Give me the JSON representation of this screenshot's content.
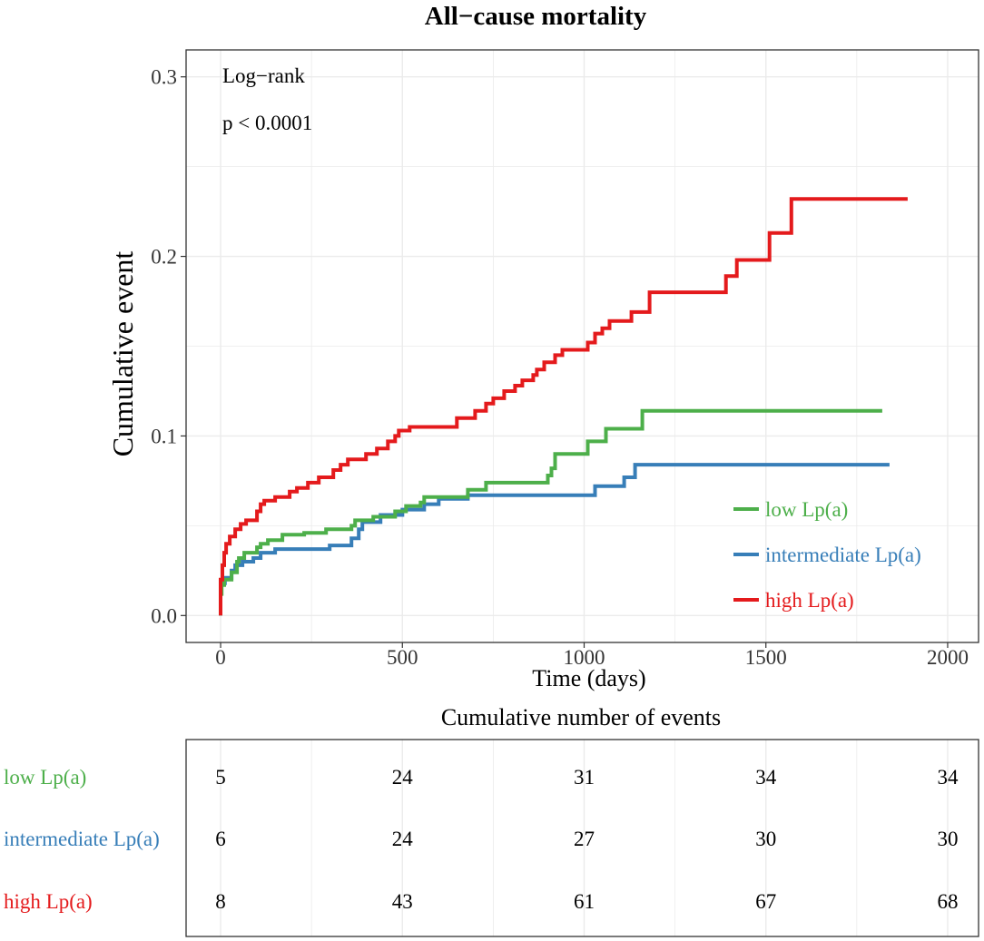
{
  "chart_data": [
    {
      "type": "line",
      "subtype": "step",
      "title": "All−cause mortality",
      "xlabel": "Time (days)",
      "ylabel": "Cumulative event",
      "xlim": [
        -95,
        2085
      ],
      "ylim": [
        -0.015,
        0.315
      ],
      "xticks": [
        0,
        500,
        1000,
        1500,
        2000
      ],
      "xtick_labels": [
        "0",
        "500",
        "1000",
        "1500",
        "2000"
      ],
      "yticks": [
        0.0,
        0.1,
        0.2,
        0.3
      ],
      "ytick_labels": [
        "0.0",
        "0.1",
        "0.2",
        "0.3"
      ],
      "grid": true,
      "legend_position": "bottom-right",
      "annotations": [
        "Log−rank",
        "p < 0.0001"
      ],
      "series": [
        {
          "name": "low Lp(a)",
          "color": "#4DAF4A",
          "points": [
            [
              0,
              0
            ],
            [
              0,
              0.012
            ],
            [
              3,
              0.012
            ],
            [
              3,
              0.017
            ],
            [
              10,
              0.017
            ],
            [
              10,
              0.02
            ],
            [
              30,
              0.02
            ],
            [
              30,
              0.024
            ],
            [
              45,
              0.024
            ],
            [
              45,
              0.03
            ],
            [
              50,
              0.03
            ],
            [
              50,
              0.032
            ],
            [
              65,
              0.032
            ],
            [
              65,
              0.035
            ],
            [
              100,
              0.035
            ],
            [
              100,
              0.038
            ],
            [
              110,
              0.038
            ],
            [
              110,
              0.04
            ],
            [
              130,
              0.04
            ],
            [
              130,
              0.042
            ],
            [
              170,
              0.042
            ],
            [
              170,
              0.045
            ],
            [
              230,
              0.045
            ],
            [
              230,
              0.046
            ],
            [
              290,
              0.046
            ],
            [
              290,
              0.048
            ],
            [
              360,
              0.048
            ],
            [
              360,
              0.05
            ],
            [
              370,
              0.05
            ],
            [
              370,
              0.053
            ],
            [
              420,
              0.053
            ],
            [
              420,
              0.055
            ],
            [
              480,
              0.055
            ],
            [
              480,
              0.058
            ],
            [
              510,
              0.058
            ],
            [
              510,
              0.061
            ],
            [
              550,
              0.061
            ],
            [
              550,
              0.063
            ],
            [
              560,
              0.063
            ],
            [
              560,
              0.066
            ],
            [
              680,
              0.066
            ],
            [
              680,
              0.07
            ],
            [
              730,
              0.07
            ],
            [
              730,
              0.074
            ],
            [
              900,
              0.074
            ],
            [
              900,
              0.078
            ],
            [
              910,
              0.078
            ],
            [
              910,
              0.082
            ],
            [
              920,
              0.082
            ],
            [
              920,
              0.09
            ],
            [
              1010,
              0.09
            ],
            [
              1010,
              0.097
            ],
            [
              1060,
              0.097
            ],
            [
              1060,
              0.104
            ],
            [
              1160,
              0.104
            ],
            [
              1160,
              0.114
            ],
            [
              1820,
              0.114
            ]
          ]
        },
        {
          "name": "intermediate Lp(a)",
          "color": "#377EB8",
          "points": [
            [
              0,
              0
            ],
            [
              0,
              0.018
            ],
            [
              12,
              0.018
            ],
            [
              12,
              0.021
            ],
            [
              30,
              0.021
            ],
            [
              30,
              0.025
            ],
            [
              40,
              0.025
            ],
            [
              40,
              0.028
            ],
            [
              60,
              0.028
            ],
            [
              60,
              0.03
            ],
            [
              90,
              0.03
            ],
            [
              90,
              0.032
            ],
            [
              110,
              0.032
            ],
            [
              110,
              0.035
            ],
            [
              150,
              0.035
            ],
            [
              150,
              0.037
            ],
            [
              300,
              0.037
            ],
            [
              300,
              0.039
            ],
            [
              360,
              0.039
            ],
            [
              360,
              0.043
            ],
            [
              380,
              0.043
            ],
            [
              380,
              0.048
            ],
            [
              390,
              0.048
            ],
            [
              390,
              0.052
            ],
            [
              440,
              0.052
            ],
            [
              440,
              0.056
            ],
            [
              500,
              0.056
            ],
            [
              500,
              0.059
            ],
            [
              560,
              0.059
            ],
            [
              560,
              0.062
            ],
            [
              600,
              0.062
            ],
            [
              600,
              0.065
            ],
            [
              680,
              0.065
            ],
            [
              680,
              0.067
            ],
            [
              1030,
              0.067
            ],
            [
              1030,
              0.072
            ],
            [
              1110,
              0.072
            ],
            [
              1110,
              0.077
            ],
            [
              1140,
              0.077
            ],
            [
              1140,
              0.084
            ],
            [
              1840,
              0.084
            ]
          ]
        },
        {
          "name": "high Lp(a)",
          "color": "#E41A1C",
          "points": [
            [
              0,
              0
            ],
            [
              0,
              0.02
            ],
            [
              5,
              0.02
            ],
            [
              5,
              0.028
            ],
            [
              10,
              0.028
            ],
            [
              10,
              0.035
            ],
            [
              15,
              0.035
            ],
            [
              15,
              0.04
            ],
            [
              25,
              0.04
            ],
            [
              25,
              0.044
            ],
            [
              40,
              0.044
            ],
            [
              40,
              0.048
            ],
            [
              55,
              0.048
            ],
            [
              55,
              0.051
            ],
            [
              70,
              0.051
            ],
            [
              70,
              0.053
            ],
            [
              100,
              0.053
            ],
            [
              100,
              0.058
            ],
            [
              110,
              0.058
            ],
            [
              110,
              0.062
            ],
            [
              120,
              0.062
            ],
            [
              120,
              0.064
            ],
            [
              150,
              0.064
            ],
            [
              150,
              0.066
            ],
            [
              190,
              0.066
            ],
            [
              190,
              0.069
            ],
            [
              210,
              0.069
            ],
            [
              210,
              0.071
            ],
            [
              240,
              0.071
            ],
            [
              240,
              0.074
            ],
            [
              270,
              0.074
            ],
            [
              270,
              0.077
            ],
            [
              310,
              0.077
            ],
            [
              310,
              0.081
            ],
            [
              330,
              0.081
            ],
            [
              330,
              0.084
            ],
            [
              350,
              0.084
            ],
            [
              350,
              0.087
            ],
            [
              400,
              0.087
            ],
            [
              400,
              0.09
            ],
            [
              430,
              0.09
            ],
            [
              430,
              0.093
            ],
            [
              460,
              0.093
            ],
            [
              460,
              0.097
            ],
            [
              480,
              0.097
            ],
            [
              480,
              0.1
            ],
            [
              490,
              0.1
            ],
            [
              490,
              0.103
            ],
            [
              520,
              0.103
            ],
            [
              520,
              0.105
            ],
            [
              650,
              0.105
            ],
            [
              650,
              0.11
            ],
            [
              700,
              0.11
            ],
            [
              700,
              0.114
            ],
            [
              730,
              0.114
            ],
            [
              730,
              0.118
            ],
            [
              750,
              0.118
            ],
            [
              750,
              0.121
            ],
            [
              780,
              0.121
            ],
            [
              780,
              0.125
            ],
            [
              810,
              0.125
            ],
            [
              810,
              0.128
            ],
            [
              830,
              0.128
            ],
            [
              830,
              0.131
            ],
            [
              860,
              0.131
            ],
            [
              860,
              0.134
            ],
            [
              870,
              0.134
            ],
            [
              870,
              0.137
            ],
            [
              890,
              0.137
            ],
            [
              890,
              0.141
            ],
            [
              920,
              0.141
            ],
            [
              920,
              0.145
            ],
            [
              940,
              0.145
            ],
            [
              940,
              0.148
            ],
            [
              1010,
              0.148
            ],
            [
              1010,
              0.152
            ],
            [
              1030,
              0.152
            ],
            [
              1030,
              0.157
            ],
            [
              1050,
              0.157
            ],
            [
              1050,
              0.16
            ],
            [
              1070,
              0.16
            ],
            [
              1070,
              0.164
            ],
            [
              1130,
              0.164
            ],
            [
              1130,
              0.169
            ],
            [
              1180,
              0.169
            ],
            [
              1180,
              0.18
            ],
            [
              1390,
              0.18
            ],
            [
              1390,
              0.189
            ],
            [
              1420,
              0.189
            ],
            [
              1420,
              0.198
            ],
            [
              1510,
              0.198
            ],
            [
              1510,
              0.213
            ],
            [
              1570,
              0.213
            ],
            [
              1570,
              0.232
            ],
            [
              1890,
              0.232
            ]
          ]
        }
      ]
    },
    {
      "type": "table",
      "title": "Cumulative number of events",
      "columns_at": [
        0,
        500,
        1000,
        1500,
        2000
      ],
      "rows": [
        {
          "label": "low Lp(a)",
          "color": "#4DAF4A",
          "values": [
            5,
            24,
            31,
            34,
            34
          ]
        },
        {
          "label": "intermediate Lp(a)",
          "color": "#377EB8",
          "values": [
            6,
            24,
            27,
            30,
            30
          ]
        },
        {
          "label": "high Lp(a)",
          "color": "#E41A1C",
          "values": [
            8,
            43,
            61,
            67,
            68
          ]
        }
      ]
    }
  ]
}
